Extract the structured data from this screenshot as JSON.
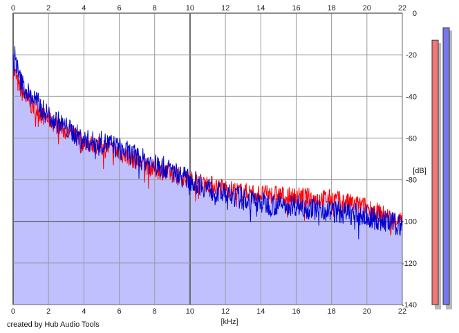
{
  "chart_data": {
    "type": "line",
    "xlabel": "[kHz]",
    "ylabel": "[dB]",
    "xlim": [
      0,
      22
    ],
    "ylim": [
      -140,
      0
    ],
    "x_ticks": [
      "0",
      "2",
      "4",
      "6",
      "8",
      "10",
      "12",
      "14",
      "16",
      "18",
      "20",
      "22"
    ],
    "y_ticks": [
      "0",
      "-20",
      "-40",
      "-60",
      "-80",
      "-100",
      "-120",
      "-140"
    ],
    "grid": true,
    "spectrum_floor": -140,
    "series": [
      {
        "color": "#ff0000",
        "x": [
          0.05,
          0.15,
          0.3,
          0.5,
          0.8,
          1.0,
          1.3,
          1.6,
          2.0,
          2.5,
          3.0,
          3.5,
          4.0,
          4.5,
          5.0,
          5.5,
          6.0,
          6.5,
          7.0,
          7.5,
          8.0,
          8.5,
          9.0,
          9.5,
          10.0,
          10.5,
          11.0,
          11.5,
          12.0,
          12.5,
          13.0,
          13.5,
          14.0,
          14.5,
          15.0,
          15.5,
          16.0,
          16.5,
          17.0,
          17.5,
          18.0,
          18.5,
          19.0,
          19.5,
          20.0,
          20.5,
          21.0,
          21.5,
          22.0
        ],
        "values": [
          -28,
          -30,
          -35,
          -38,
          -42,
          -44,
          -46,
          -49,
          -51,
          -54,
          -57,
          -59,
          -62,
          -63,
          -64,
          -65,
          -67,
          -69,
          -71,
          -73,
          -75,
          -76,
          -77,
          -78,
          -80,
          -81,
          -82,
          -83,
          -84,
          -85,
          -86,
          -86,
          -87,
          -87,
          -87,
          -88,
          -88,
          -88,
          -89,
          -89,
          -89,
          -90,
          -91,
          -92,
          -93,
          -95,
          -97,
          -99,
          -100
        ]
      },
      {
        "color": "#0000cc",
        "x": [
          0.05,
          0.1,
          0.15,
          0.3,
          0.5,
          0.8,
          1.0,
          1.3,
          1.6,
          2.0,
          2.5,
          3.0,
          3.5,
          4.0,
          4.5,
          5.0,
          5.5,
          6.0,
          6.5,
          7.0,
          7.5,
          8.0,
          8.5,
          9.0,
          9.5,
          10.0,
          10.5,
          11.0,
          11.5,
          12.0,
          12.5,
          13.0,
          13.5,
          14.0,
          14.5,
          15.0,
          15.5,
          16.0,
          16.5,
          17.0,
          17.5,
          18.0,
          18.5,
          19.0,
          19.5,
          20.0,
          20.5,
          21.0,
          21.5,
          22.0
        ],
        "values": [
          -25,
          -18,
          -22,
          -30,
          -34,
          -38,
          -40,
          -42,
          -46,
          -49,
          -52,
          -55,
          -58,
          -61,
          -62,
          -62,
          -63,
          -65,
          -67,
          -69,
          -71,
          -73,
          -74,
          -76,
          -78,
          -80,
          -82,
          -84,
          -86,
          -87,
          -88,
          -89,
          -90,
          -91,
          -92,
          -92,
          -92,
          -92,
          -93,
          -94,
          -94,
          -95,
          -96,
          -96,
          -97,
          -98,
          -99,
          -100,
          -101,
          -102
        ]
      }
    ],
    "level_meters": [
      {
        "color": "#ee7777",
        "value": -13
      },
      {
        "color": "#7777ee",
        "value": -7
      }
    ],
    "colors": {
      "fill": "#c0c0ff",
      "grid": "#999999",
      "major_grid": "#666666",
      "meter_shadow": "#b8b8b8"
    }
  },
  "credit": "created by Hub Audio Tools"
}
